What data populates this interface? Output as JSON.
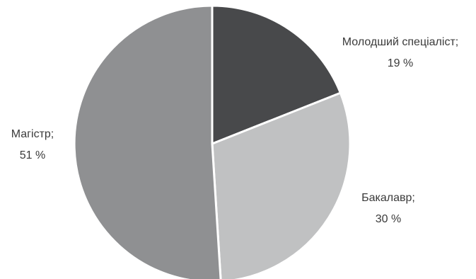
{
  "chart_data": {
    "type": "pie",
    "title": "",
    "slices": [
      {
        "name": "Молодший спеціаліст;",
        "value": 19,
        "value_label": "19 %",
        "color": "#48494b"
      },
      {
        "name": "Бакалавр;",
        "value": 30,
        "value_label": "30 %",
        "color": "#c0c1c2"
      },
      {
        "name": "Магістр;",
        "value": 51,
        "value_label": "51 %",
        "color": "#8f9092"
      }
    ],
    "start": "12 o'clock",
    "direction": "clockwise",
    "separator_color": "#ffffff",
    "legend": "none (labels placed beside slices)"
  }
}
